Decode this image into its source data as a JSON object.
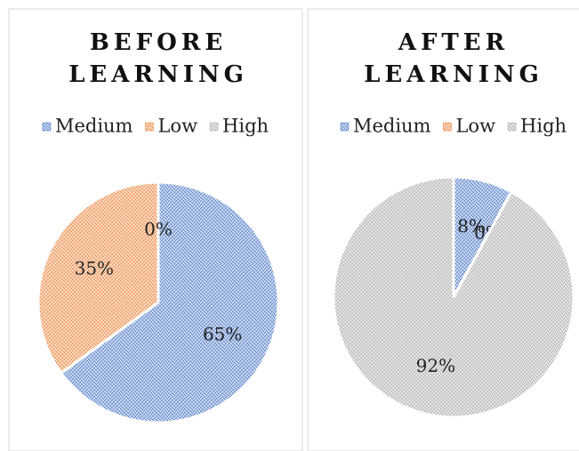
{
  "chart_data": [
    {
      "type": "pie",
      "title": "BEFORE LEARNING",
      "categories": [
        "Medium",
        "Low",
        "High"
      ],
      "values": [
        65,
        35,
        0
      ],
      "value_labels": [
        "65%",
        "35%",
        "0%"
      ],
      "colors": [
        "#4472c4",
        "#ed7d31",
        "#a5a5a5"
      ],
      "legend": "top"
    },
    {
      "type": "pie",
      "title": "AFTER LEARNING",
      "categories": [
        "Medium",
        "Low",
        "High"
      ],
      "values": [
        8,
        0,
        92
      ],
      "value_labels": [
        "8%",
        "0%",
        "92%"
      ],
      "colors": [
        "#4472c4",
        "#ed7d31",
        "#a5a5a5"
      ],
      "legend": "top"
    }
  ]
}
